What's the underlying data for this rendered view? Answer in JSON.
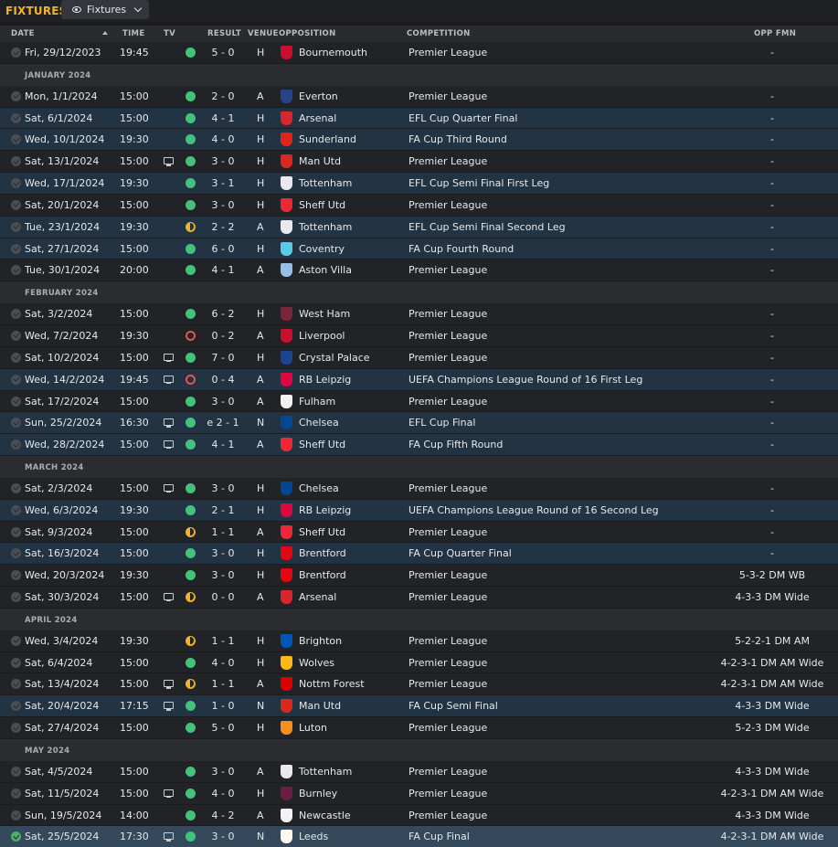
{
  "title": "FIXTURES",
  "view_dropdown": {
    "label": "Fixtures",
    "icon": "eye-icon"
  },
  "columns": {
    "date": "DATE",
    "time": "TIME",
    "tv": "TV",
    "result": "RESULT",
    "venue": "VENUE",
    "opposition": "OPPOSITION",
    "competition": "COMPETITION",
    "opp_fmn": "OPP FMN"
  },
  "rows": [
    {
      "type": "match",
      "date": "Fri, 29/12/2023",
      "time": "19:45",
      "tv": false,
      "result": "win",
      "score": "5 - 0",
      "venue": "H",
      "opposition": "Bournemouth",
      "crest": "#c8102e",
      "competition": "Premier League",
      "fmn": "-",
      "alt": false
    },
    {
      "type": "month",
      "label": "JANUARY 2024"
    },
    {
      "type": "match",
      "date": "Mon, 1/1/2024",
      "time": "15:00",
      "tv": false,
      "result": "win",
      "score": "2 - 0",
      "venue": "A",
      "opposition": "Everton",
      "crest": "#274488",
      "competition": "Premier League",
      "fmn": "-",
      "alt": false
    },
    {
      "type": "match",
      "date": "Sat, 6/1/2024",
      "time": "15:00",
      "tv": false,
      "result": "win",
      "score": "4 - 1",
      "venue": "H",
      "opposition": "Arsenal",
      "crest": "#d8262e",
      "competition": "EFL Cup Quarter Final",
      "fmn": "-",
      "alt": true
    },
    {
      "type": "match",
      "date": "Wed, 10/1/2024",
      "time": "19:30",
      "tv": false,
      "result": "win",
      "score": "4 - 0",
      "venue": "H",
      "opposition": "Sunderland",
      "crest": "#e2231a",
      "competition": "FA Cup Third Round",
      "fmn": "-",
      "alt": true
    },
    {
      "type": "match",
      "date": "Sat, 13/1/2024",
      "time": "15:00",
      "tv": true,
      "result": "win",
      "score": "3 - 0",
      "venue": "H",
      "opposition": "Man Utd",
      "crest": "#da291c",
      "competition": "Premier League",
      "fmn": "-",
      "alt": false
    },
    {
      "type": "match",
      "date": "Wed, 17/1/2024",
      "time": "19:30",
      "tv": false,
      "result": "win",
      "score": "3 - 1",
      "venue": "H",
      "opposition": "Tottenham",
      "crest": "#e8e8ee",
      "competition": "EFL Cup Semi Final First Leg",
      "fmn": "-",
      "alt": true
    },
    {
      "type": "match",
      "date": "Sat, 20/1/2024",
      "time": "15:00",
      "tv": false,
      "result": "win",
      "score": "3 - 0",
      "venue": "H",
      "opposition": "Sheff Utd",
      "crest": "#ee2737",
      "competition": "Premier League",
      "fmn": "-",
      "alt": false
    },
    {
      "type": "match",
      "date": "Tue, 23/1/2024",
      "time": "19:30",
      "tv": false,
      "result": "draw",
      "score": "2 - 2",
      "venue": "A",
      "opposition": "Tottenham",
      "crest": "#e8e8ee",
      "competition": "EFL Cup Semi Final Second Leg",
      "fmn": "-",
      "alt": true
    },
    {
      "type": "match",
      "date": "Sat, 27/1/2024",
      "time": "15:00",
      "tv": false,
      "result": "win",
      "score": "6 - 0",
      "venue": "H",
      "opposition": "Coventry",
      "crest": "#59cbe8",
      "competition": "FA Cup Fourth Round",
      "fmn": "-",
      "alt": true
    },
    {
      "type": "match",
      "date": "Tue, 30/1/2024",
      "time": "20:00",
      "tv": false,
      "result": "win",
      "score": "4 - 1",
      "venue": "A",
      "opposition": "Aston Villa",
      "crest": "#95bfe5",
      "competition": "Premier League",
      "fmn": "-",
      "alt": false
    },
    {
      "type": "month",
      "label": "FEBRUARY 2024"
    },
    {
      "type": "match",
      "date": "Sat, 3/2/2024",
      "time": "15:00",
      "tv": false,
      "result": "win",
      "score": "6 - 2",
      "venue": "H",
      "opposition": "West Ham",
      "crest": "#7a263a",
      "competition": "Premier League",
      "fmn": "-",
      "alt": false
    },
    {
      "type": "match",
      "date": "Wed, 7/2/2024",
      "time": "19:30",
      "tv": false,
      "result": "loss",
      "score": "0 - 2",
      "venue": "A",
      "opposition": "Liverpool",
      "crest": "#c8102e",
      "competition": "Premier League",
      "fmn": "-",
      "alt": false
    },
    {
      "type": "match",
      "date": "Sat, 10/2/2024",
      "time": "15:00",
      "tv": true,
      "result": "win",
      "score": "7 - 0",
      "venue": "H",
      "opposition": "Crystal Palace",
      "crest": "#1b458f",
      "competition": "Premier League",
      "fmn": "-",
      "alt": false
    },
    {
      "type": "match",
      "date": "Wed, 14/2/2024",
      "time": "19:45",
      "tv": true,
      "result": "loss",
      "score": "0 - 4",
      "venue": "A",
      "opposition": "RB Leipzig",
      "crest": "#dd0741",
      "competition": "UEFA Champions League Round of 16 First Leg",
      "fmn": "-",
      "alt": true
    },
    {
      "type": "match",
      "date": "Sat, 17/2/2024",
      "time": "15:00",
      "tv": false,
      "result": "win",
      "score": "3 - 0",
      "venue": "A",
      "opposition": "Fulham",
      "crest": "#f2f2f2",
      "competition": "Premier League",
      "fmn": "-",
      "alt": false
    },
    {
      "type": "match",
      "date": "Sun, 25/2/2024",
      "time": "16:30",
      "tv": true,
      "result": "win",
      "score": "e 2 - 1",
      "venue": "N",
      "opposition": "Chelsea",
      "crest": "#034694",
      "competition": "EFL Cup Final",
      "fmn": "-",
      "alt": true
    },
    {
      "type": "match",
      "date": "Wed, 28/2/2024",
      "time": "15:00",
      "tv": true,
      "result": "win",
      "score": "4 - 1",
      "venue": "A",
      "opposition": "Sheff Utd",
      "crest": "#ee2737",
      "competition": "FA Cup Fifth Round",
      "fmn": "-",
      "alt": true
    },
    {
      "type": "month",
      "label": "MARCH 2024"
    },
    {
      "type": "match",
      "date": "Sat, 2/3/2024",
      "time": "15:00",
      "tv": true,
      "result": "win",
      "score": "3 - 0",
      "venue": "H",
      "opposition": "Chelsea",
      "crest": "#034694",
      "competition": "Premier League",
      "fmn": "-",
      "alt": false
    },
    {
      "type": "match",
      "date": "Wed, 6/3/2024",
      "time": "19:30",
      "tv": false,
      "result": "win",
      "score": "2 - 1",
      "venue": "H",
      "opposition": "RB Leipzig",
      "crest": "#dd0741",
      "competition": "UEFA Champions League Round of 16 Second Leg",
      "fmn": "-",
      "alt": true
    },
    {
      "type": "match",
      "date": "Sat, 9/3/2024",
      "time": "15:00",
      "tv": false,
      "result": "draw",
      "score": "1 - 1",
      "venue": "A",
      "opposition": "Sheff Utd",
      "crest": "#ee2737",
      "competition": "Premier League",
      "fmn": "-",
      "alt": false
    },
    {
      "type": "match",
      "date": "Sat, 16/3/2024",
      "time": "15:00",
      "tv": false,
      "result": "win",
      "score": "3 - 0",
      "venue": "H",
      "opposition": "Brentford",
      "crest": "#e30613",
      "competition": "FA Cup Quarter Final",
      "fmn": "-",
      "alt": true
    },
    {
      "type": "match",
      "date": "Wed, 20/3/2024",
      "time": "19:30",
      "tv": false,
      "result": "win",
      "score": "3 - 0",
      "venue": "H",
      "opposition": "Brentford",
      "crest": "#e30613",
      "competition": "Premier League",
      "fmn": "5-3-2 DM WB",
      "alt": false
    },
    {
      "type": "match",
      "date": "Sat, 30/3/2024",
      "time": "15:00",
      "tv": true,
      "result": "draw",
      "score": "0 - 0",
      "venue": "A",
      "opposition": "Arsenal",
      "crest": "#d8262e",
      "competition": "Premier League",
      "fmn": "4-3-3 DM Wide",
      "alt": false
    },
    {
      "type": "month",
      "label": "APRIL 2024"
    },
    {
      "type": "match",
      "date": "Wed, 3/4/2024",
      "time": "19:30",
      "tv": false,
      "result": "draw",
      "score": "1 - 1",
      "venue": "H",
      "opposition": "Brighton",
      "crest": "#0057b8",
      "competition": "Premier League",
      "fmn": "5-2-2-1 DM AM",
      "alt": false
    },
    {
      "type": "match",
      "date": "Sat, 6/4/2024",
      "time": "15:00",
      "tv": false,
      "result": "win",
      "score": "4 - 0",
      "venue": "H",
      "opposition": "Wolves",
      "crest": "#fdb913",
      "competition": "Premier League",
      "fmn": "4-2-3-1 DM AM Wide",
      "alt": false
    },
    {
      "type": "match",
      "date": "Sat, 13/4/2024",
      "time": "15:00",
      "tv": true,
      "result": "draw",
      "score": "1 - 1",
      "venue": "A",
      "opposition": "Nottm Forest",
      "crest": "#dd0000",
      "competition": "Premier League",
      "fmn": "4-2-3-1 DM AM Wide",
      "alt": false
    },
    {
      "type": "match",
      "date": "Sat, 20/4/2024",
      "time": "17:15",
      "tv": true,
      "result": "win",
      "score": "1 - 0",
      "venue": "N",
      "opposition": "Man Utd",
      "crest": "#da291c",
      "competition": "FA Cup Semi Final",
      "fmn": "4-3-3 DM Wide",
      "alt": true
    },
    {
      "type": "match",
      "date": "Sat, 27/4/2024",
      "time": "15:00",
      "tv": false,
      "result": "win",
      "score": "5 - 0",
      "venue": "H",
      "opposition": "Luton",
      "crest": "#f78f1e",
      "competition": "Premier League",
      "fmn": "5-2-3 DM Wide",
      "alt": false
    },
    {
      "type": "month",
      "label": "MAY 2024"
    },
    {
      "type": "match",
      "date": "Sat, 4/5/2024",
      "time": "15:00",
      "tv": false,
      "result": "win",
      "score": "3 - 0",
      "venue": "A",
      "opposition": "Tottenham",
      "crest": "#e8e8ee",
      "competition": "Premier League",
      "fmn": "4-3-3 DM Wide",
      "alt": false
    },
    {
      "type": "match",
      "date": "Sat, 11/5/2024",
      "time": "15:00",
      "tv": true,
      "result": "win",
      "score": "4 - 0",
      "venue": "H",
      "opposition": "Burnley",
      "crest": "#6c1d45",
      "competition": "Premier League",
      "fmn": "4-2-3-1 DM AM Wide",
      "alt": false
    },
    {
      "type": "match",
      "date": "Sun, 19/5/2024",
      "time": "14:00",
      "tv": false,
      "result": "win",
      "score": "4 - 2",
      "venue": "A",
      "opposition": "Newcastle",
      "crest": "#f2f2f2",
      "competition": "Premier League",
      "fmn": "4-3-3 DM Wide",
      "alt": false
    },
    {
      "type": "match",
      "date": "Sat, 25/5/2024",
      "time": "17:30",
      "tv": true,
      "result": "win",
      "score": "3 - 0",
      "venue": "N",
      "opposition": "Leeds",
      "crest": "#fdf8f0",
      "competition": "FA Cup Final",
      "fmn": "4-2-3-1 DM AM Wide",
      "alt": false,
      "selected": true
    }
  ]
}
